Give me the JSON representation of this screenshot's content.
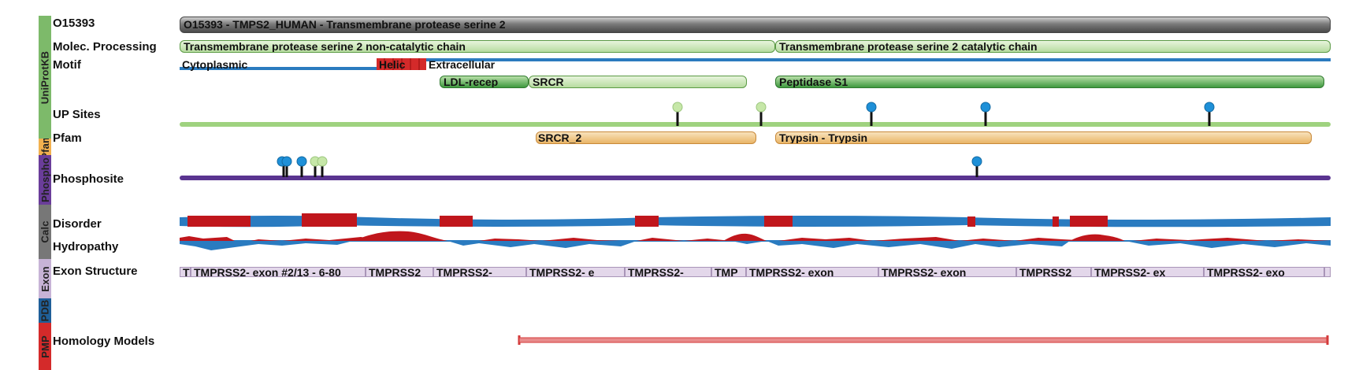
{
  "sidebar": {
    "uniprot": {
      "label": "UniProtKB",
      "color": "#7dba6a"
    },
    "pfam": {
      "label": "Pfam",
      "color": "#f2b14f"
    },
    "phospho": {
      "label": "Phospho",
      "color": "#6a3d9a"
    },
    "calc": {
      "label": "Calc",
      "color": "#777777"
    },
    "exon": {
      "label": "Exon",
      "color": "#c7b3d6"
    },
    "pdb": {
      "label": "PDB",
      "color": "#1f5f99"
    },
    "pmp": {
      "label": "PMP",
      "color": "#d42a2a"
    }
  },
  "rows": {
    "accession": "O15393",
    "molec": "Molec. Processing",
    "motif": "Motif",
    "upsites": "UP Sites",
    "pfam": "Pfam",
    "phosphosite": "Phosphosite",
    "disorder": "Disorder",
    "hydropathy": "Hydropathy",
    "exon": "Exon Structure",
    "homology": "Homology Models"
  },
  "features": {
    "protein": "O15393 - TMPS2_HUMAN - Transmembrane protease serine 2",
    "chain1": "Transmembrane protease serine 2 non-catalytic chain",
    "chain2": "Transmembrane protease serine 2 catalytic chain",
    "topo_cyto": "Cytoplasmic",
    "topo_helic": "Helic",
    "topo_extra": "Extracellular",
    "ldl": "LDL-recep",
    "srcr": "SRCR",
    "peptidase": "Peptidase S1",
    "pfam_srcr": "SRCR_2",
    "pfam_trypsin": "Trypsin - Trypsin"
  },
  "exons": [
    {
      "label": "T"
    },
    {
      "label": "TMPRSS2- exon #2/13 - 6-80"
    },
    {
      "label": "TMPRSS2"
    },
    {
      "label": "TMPRSS2-"
    },
    {
      "label": "TMPRSS2- e"
    },
    {
      "label": "TMPRSS2-"
    },
    {
      "label": "TMP"
    },
    {
      "label": "TMPRSS2- exon"
    },
    {
      "label": "TMPRSS2- exon"
    },
    {
      "label": "TMPRSS2"
    },
    {
      "label": "TMPRSS2- ex"
    },
    {
      "label": "TMPRSS2- exo"
    }
  ],
  "colors": {
    "topology_line": "#2b7bbf",
    "helix": "#d42a2a",
    "up_line": "#9fd27f",
    "pin_blue": "#1e90d8",
    "pin_lightgreen": "#c6e7a8",
    "phospho_line": "#5a3490",
    "disorder_blue": "#2a7bc0",
    "disorder_red": "#c0161c",
    "homology": "#d43a3a"
  }
}
